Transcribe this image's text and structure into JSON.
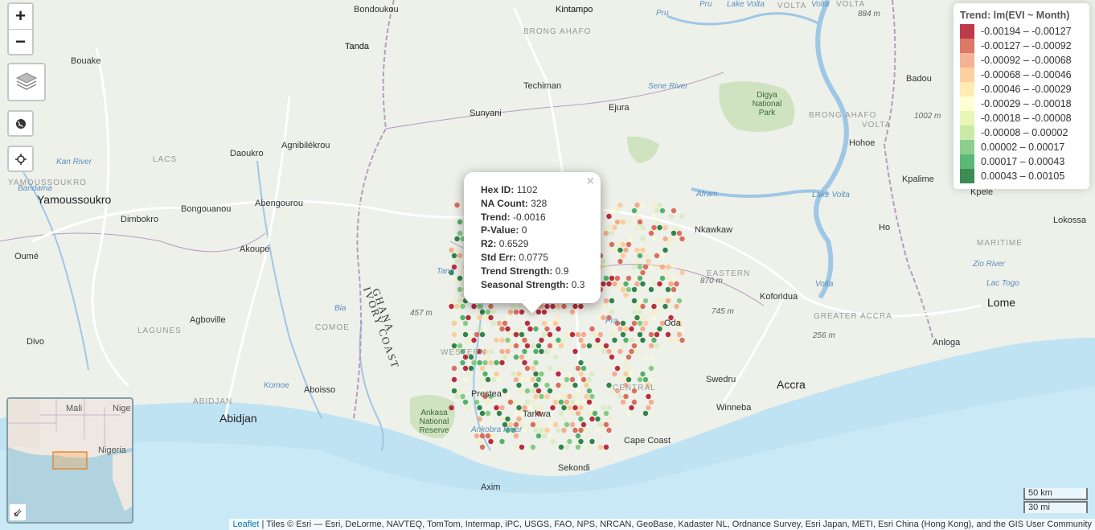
{
  "map": {
    "zoom_in_label": "+",
    "zoom_out_label": "−",
    "colors": {
      "land": "#eef0ea",
      "sea": "#bfe3f2",
      "park": "#cfe3c0",
      "border": "#b99ac2",
      "river": "#9fc7e6",
      "road": "#ffffff"
    },
    "places": [
      {
        "name": "Bondoukou",
        "cls": ""
      },
      {
        "name": "Kintampo",
        "cls": ""
      },
      {
        "name": "BRONG AHAFO",
        "cls": "region"
      },
      {
        "name": "Tanda",
        "cls": ""
      },
      {
        "name": "Bouake",
        "cls": ""
      },
      {
        "name": "Techiman",
        "cls": ""
      },
      {
        "name": "Sunyani",
        "cls": ""
      },
      {
        "name": "Ejura",
        "cls": ""
      },
      {
        "name": "Daoukro",
        "cls": ""
      },
      {
        "name": "Agnibilékrou",
        "cls": ""
      },
      {
        "name": "LACS",
        "cls": "region"
      },
      {
        "name": "YAMOUSSOUKRO",
        "cls": "region"
      },
      {
        "name": "Yamoussoukro",
        "cls": "big"
      },
      {
        "name": "Dimbokro",
        "cls": ""
      },
      {
        "name": "Bongouanou",
        "cls": ""
      },
      {
        "name": "Abengourou",
        "cls": ""
      },
      {
        "name": "Akoupé",
        "cls": ""
      },
      {
        "name": "Oumé",
        "cls": ""
      },
      {
        "name": "Agboville",
        "cls": ""
      },
      {
        "name": "LAGUNES",
        "cls": "region"
      },
      {
        "name": "Divo",
        "cls": ""
      },
      {
        "name": "COMOE",
        "cls": "region"
      },
      {
        "name": "WESTERN",
        "cls": "region"
      },
      {
        "name": "Aboisso",
        "cls": ""
      },
      {
        "name": "ABIDJAN",
        "cls": "region"
      },
      {
        "name": "Abidjan",
        "cls": "big"
      },
      {
        "name": "Prestea",
        "cls": ""
      },
      {
        "name": "Tarkwa",
        "cls": ""
      },
      {
        "name": "Axim",
        "cls": ""
      },
      {
        "name": "Sekondi",
        "cls": ""
      },
      {
        "name": "Cape Coast",
        "cls": ""
      },
      {
        "name": "CENTRAL",
        "cls": "region"
      },
      {
        "name": "Winneba",
        "cls": ""
      },
      {
        "name": "Swedru",
        "cls": ""
      },
      {
        "name": "Accra",
        "cls": "big"
      },
      {
        "name": "GREATER ACCRA",
        "cls": "region"
      },
      {
        "name": "Oda",
        "cls": ""
      },
      {
        "name": "Koforidua",
        "cls": ""
      },
      {
        "name": "EASTERN",
        "cls": "region"
      },
      {
        "name": "Nkawkaw",
        "cls": ""
      },
      {
        "name": "Lake Volta",
        "cls": "water"
      },
      {
        "name": "Afram",
        "cls": "water"
      },
      {
        "name": "Sene River",
        "cls": "water"
      },
      {
        "name": "Digya National Park",
        "cls": "park"
      },
      {
        "name": "BRONG AHAFO",
        "cls": "region"
      },
      {
        "name": "VOLTA",
        "cls": "region"
      },
      {
        "name": "Hohoe",
        "cls": ""
      },
      {
        "name": "Badou",
        "cls": ""
      },
      {
        "name": "Kpalime",
        "cls": ""
      },
      {
        "name": "Kpele",
        "cls": ""
      },
      {
        "name": "Lokossa",
        "cls": ""
      },
      {
        "name": "Ho",
        "cls": ""
      },
      {
        "name": "MARITIME",
        "cls": "region"
      },
      {
        "name": "Lome",
        "cls": "big"
      },
      {
        "name": "Anloga",
        "cls": ""
      },
      {
        "name": "Ankasa National Reserve",
        "cls": "park"
      },
      {
        "name": "GHANA",
        "cls": "country"
      },
      {
        "name": "IVORY COAST",
        "cls": "country"
      },
      {
        "name": "884 m",
        "cls": "elev"
      },
      {
        "name": "1002 m",
        "cls": "elev"
      },
      {
        "name": "870 m",
        "cls": "elev"
      },
      {
        "name": "745 m",
        "cls": "elev"
      },
      {
        "name": "457 m",
        "cls": "elev"
      },
      {
        "name": "256 m",
        "cls": "elev"
      },
      {
        "name": "Pra",
        "cls": "water"
      },
      {
        "name": "Tano",
        "cls": "water"
      },
      {
        "name": "Bia",
        "cls": "water"
      },
      {
        "name": "Komoe",
        "cls": "water"
      },
      {
        "name": "Ankobra River",
        "cls": "water"
      },
      {
        "name": "Zio River",
        "cls": "water"
      },
      {
        "name": "Lac Togo",
        "cls": "water"
      },
      {
        "name": "Kan River",
        "cls": "water"
      },
      {
        "name": "Bandama",
        "cls": "water"
      },
      {
        "name": "Volta",
        "cls": "water"
      },
      {
        "name": "VOLTA",
        "cls": "region"
      },
      {
        "name": "Pru",
        "cls": "water"
      },
      {
        "name": "Pru",
        "cls": "water"
      },
      {
        "name": "Lake Volta",
        "cls": "water"
      },
      {
        "name": "Volta",
        "cls": "water"
      },
      {
        "name": "VOLTA",
        "cls": "region"
      },
      {
        "name": "Kintampo",
        "cls": ""
      },
      {
        "name": "Tanda",
        "cls": ""
      }
    ]
  },
  "minimap": {
    "labels": [
      "Mali",
      "Nige",
      "Nigeria"
    ],
    "toggle_icon": "arrow-collapse-icon"
  },
  "legend": {
    "title": "Trend: lm(EVI ~ Month)",
    "items": [
      {
        "label": "-0.00194 – -0.00127",
        "color": "#b2182b"
      },
      {
        "label": "-0.00127 – -0.00092",
        "color": "#d6604d"
      },
      {
        "label": "-0.00092 – -0.00068",
        "color": "#f4a582"
      },
      {
        "label": "-0.00068 – -0.00046",
        "color": "#fdc98f"
      },
      {
        "label": "-0.00046 – -0.00029",
        "color": "#fee8a8"
      },
      {
        "label": "-0.00029 – -0.00018",
        "color": "#ffffcc"
      },
      {
        "label": "-0.00018 – -0.00008",
        "color": "#e6f5a8"
      },
      {
        "label": "-0.00008 – 0.00002",
        "color": "#c2e699"
      },
      {
        "label": "0.00002 – 0.00017",
        "color": "#78c679"
      },
      {
        "label": "0.00017 – 0.00043",
        "color": "#41ab5d"
      },
      {
        "label": "0.00043 – 0.00105",
        "color": "#1b7837"
      }
    ]
  },
  "popup": {
    "close": "×",
    "fields": [
      {
        "key": "Hex ID:",
        "value": "1102"
      },
      {
        "key": "NA Count:",
        "value": "328"
      },
      {
        "key": "Trend:",
        "value": "-0.0016"
      },
      {
        "key": "P-Value:",
        "value": "0"
      },
      {
        "key": "R2:",
        "value": "0.6529"
      },
      {
        "key": "Std Err:",
        "value": "0.0775"
      },
      {
        "key": "Trend Strength:",
        "value": "0.9"
      },
      {
        "key": "Seasonal Strength:",
        "value": "0.3"
      }
    ]
  },
  "scale": {
    "km": "50 km",
    "mi": "30 mi"
  },
  "attribution": {
    "link": "Leaflet",
    "text": " | Tiles © Esri — Esri, DeLorme, NAVTEQ, TomTom, Intermap, iPC, USGS, FAO, NPS, NRCAN, GeoBase, Kadaster NL, Ordnance Survey, Esri Japan, METI, Esri China (Hong Kong), and the GIS User Community"
  }
}
